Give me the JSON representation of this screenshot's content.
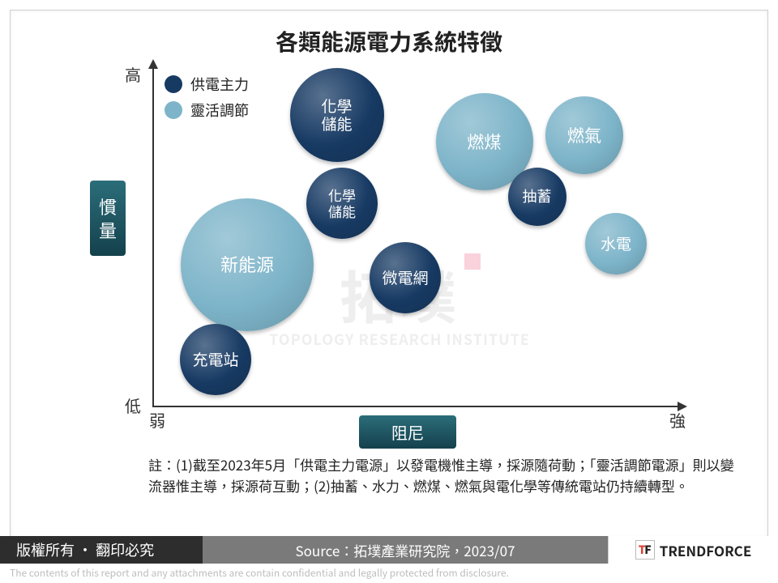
{
  "title": "各類能源電力系統特徵",
  "chart": {
    "type": "bubble",
    "xlim": [
      0,
      100
    ],
    "ylim": [
      0,
      100
    ],
    "x_axis": {
      "title": "阻尼",
      "label_low": "弱",
      "label_high": "強"
    },
    "y_axis": {
      "title": "慣量",
      "label_low": "低",
      "label_high": "高"
    },
    "axis_title_bg_gradient": [
      "#2b6d7a",
      "#14414c"
    ],
    "axis_title_text_color": "#ffffff",
    "axis_line_color": "#333333",
    "background_color": "#ffffff",
    "legend": [
      {
        "label": "供電主力",
        "color": "#173a63"
      },
      {
        "label": "靈活調節",
        "color": "#7db4c9"
      }
    ],
    "bubbles": [
      {
        "label": "化學儲能",
        "x": 35,
        "y": 86,
        "r": 58,
        "color": "#173a63",
        "fontsize": 19,
        "category": "供電主力"
      },
      {
        "label": "燃煤",
        "x": 63,
        "y": 78,
        "r": 60,
        "color": "#7db4c9",
        "fontsize": 21,
        "category": "靈活調節"
      },
      {
        "label": "燃氣",
        "x": 82,
        "y": 80,
        "r": 48,
        "color": "#7db4c9",
        "fontsize": 21,
        "category": "靈活調節"
      },
      {
        "label": "抽蓄",
        "x": 73,
        "y": 62,
        "r": 36,
        "color": "#173a63",
        "fontsize": 18,
        "category": "供電主力"
      },
      {
        "label": "化學儲能",
        "x": 36,
        "y": 60,
        "r": 44,
        "color": "#173a63",
        "fontsize": 17,
        "category": "供電主力"
      },
      {
        "label": "水電",
        "x": 88,
        "y": 48,
        "r": 38,
        "color": "#7db4c9",
        "fontsize": 19,
        "category": "靈活調節"
      },
      {
        "label": "新能源",
        "x": 18,
        "y": 42,
        "r": 82,
        "color": "#7db4c9",
        "fontsize": 22,
        "category": "靈活調節"
      },
      {
        "label": "微電網",
        "x": 48,
        "y": 38,
        "r": 44,
        "color": "#173a63",
        "fontsize": 19,
        "category": "供電主力"
      },
      {
        "label": "充電站",
        "x": 12,
        "y": 14,
        "r": 44,
        "color": "#173a63",
        "fontsize": 19,
        "category": "供電主力"
      }
    ]
  },
  "watermark": {
    "zh": "拓墣",
    "en": "TOPOLOGY RESEARCH INSTITUTE"
  },
  "note": "註：(1)截至2023年5月「供電主力電源」以發電機惟主導，採源隨荷動；「靈活調節電源」則以變流器惟主導，採源荷互動；(2)抽蓄、水力、燃煤、燃氣與電化學等傳統電站仍持續轉型。",
  "footer": {
    "copyright": "版權所有 · 翻印必究",
    "source": "Source：拓墣產業研究院，2023/07",
    "brand": "TRENDFORCE"
  },
  "disclaimer": "The contents of this report and any attachments are contain confidential and legally protected from disclosure."
}
